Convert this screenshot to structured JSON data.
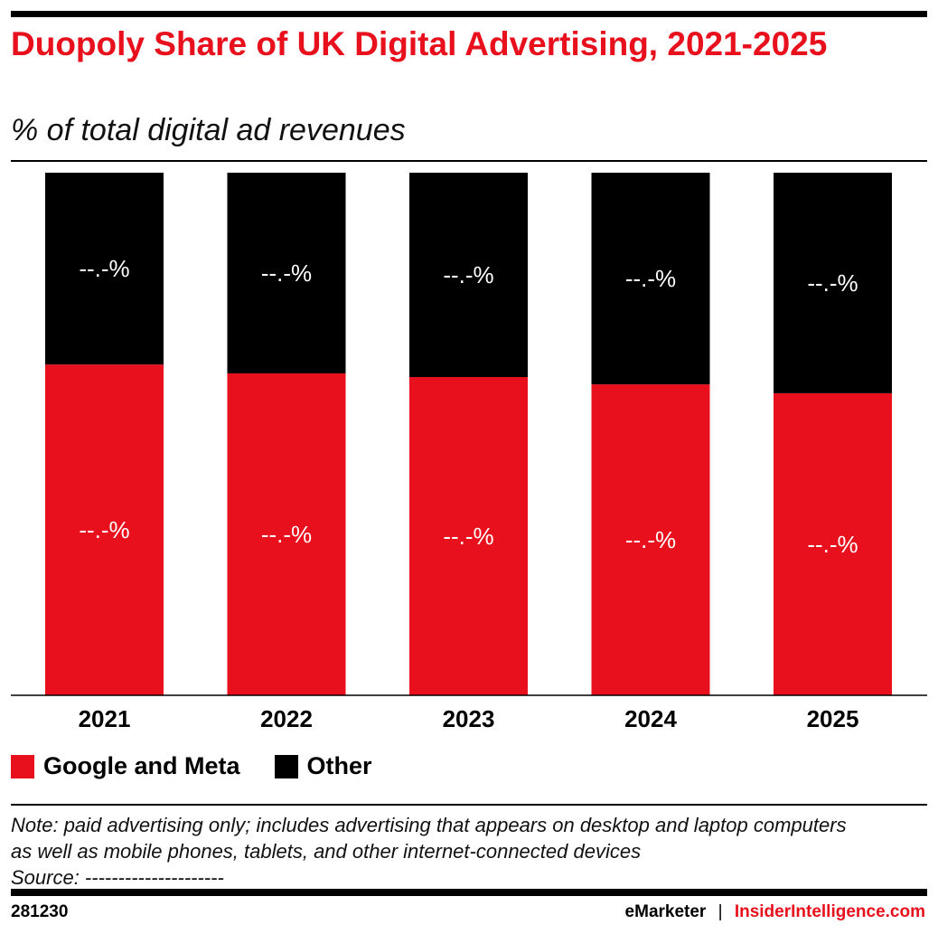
{
  "chart_data": {
    "type": "bar",
    "stacked": true,
    "title": "Duopoly Share of UK Digital Advertising, 2021-2025",
    "subtitle": "% of total digital ad revenues",
    "categories": [
      "2021",
      "2022",
      "2023",
      "2024",
      "2025"
    ],
    "series": [
      {
        "name": "Google and Meta",
        "color": "#e8101c",
        "values": [
          63.3,
          61.6,
          60.9,
          59.5,
          57.8
        ],
        "labels": [
          "--.-%",
          "--.-%",
          "--.-%",
          "--.-%",
          "--.-%"
        ]
      },
      {
        "name": "Other",
        "color": "#000000",
        "values": [
          36.7,
          38.4,
          39.1,
          40.5,
          42.2
        ],
        "labels": [
          "--.-%",
          "--.-%",
          "--.-%",
          "--.-%",
          "--.-%"
        ]
      }
    ],
    "ylim": [
      0,
      100
    ],
    "grid": false,
    "legend": "bottom-left"
  },
  "note": "Note: paid advertising only; includes advertising that appears on desktop and laptop computers as well as mobile phones, tablets, and other internet-connected devices",
  "source": "Source: ---------------------",
  "footer": {
    "id": "281230",
    "brand1": "eMarketer",
    "separator": "|",
    "brand2": "InsiderIntelligence.com"
  }
}
